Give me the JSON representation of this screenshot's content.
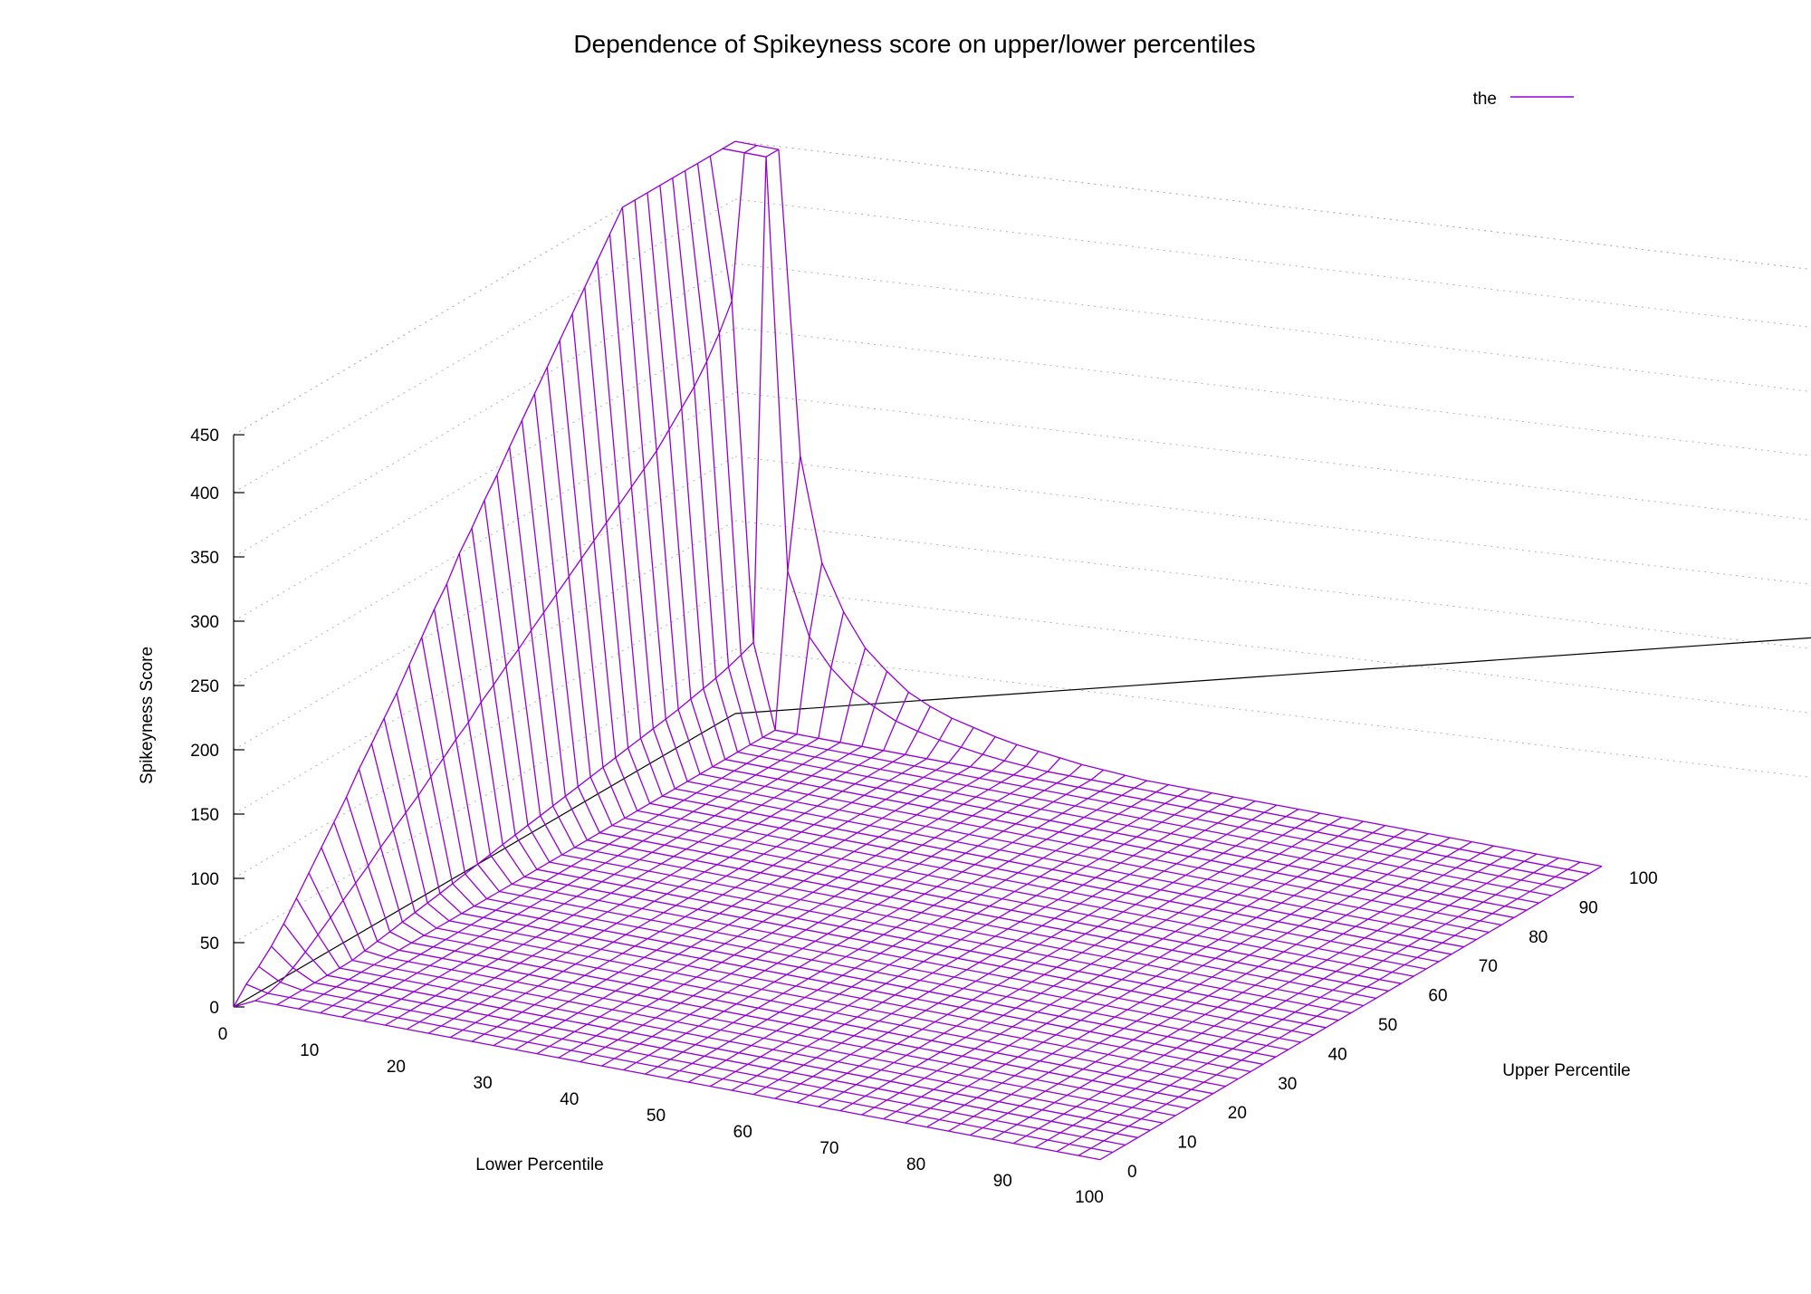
{
  "chart_data": {
    "type": "surface",
    "title": "Dependence of Spikeyness score on upper/lower percentiles",
    "xlabel": "Lower Percentile",
    "ylabel": "Upper Percentile",
    "zlabel": "Spikeyness Score",
    "xlim": [
      0,
      100
    ],
    "ylim": [
      0,
      100
    ],
    "zlim": [
      0,
      450
    ],
    "x_ticks": [
      0,
      10,
      20,
      30,
      40,
      50,
      60,
      70,
      80,
      90,
      100
    ],
    "y_ticks": [
      0,
      10,
      20,
      30,
      40,
      50,
      60,
      70,
      80,
      90,
      100
    ],
    "z_ticks": [
      0,
      50,
      100,
      150,
      200,
      250,
      300,
      350,
      400,
      450
    ],
    "grid": "dotted back planes",
    "legend_position": "top-right",
    "series": [
      {
        "name": "the",
        "color": "#9400d3",
        "grid_lower": [
          0,
          2.5,
          5,
          7.5,
          10,
          12.5,
          15,
          17.5,
          20,
          22.5,
          25,
          27.5,
          30,
          32.5,
          35,
          37.5,
          40,
          42.5,
          45,
          47.5,
          50,
          52.5,
          55,
          57.5,
          60,
          62.5,
          65,
          67.5,
          70,
          72.5,
          75,
          77.5,
          80,
          82.5,
          85,
          87.5,
          90,
          92.5,
          95,
          97.5,
          100
        ],
        "grid_upper": [
          0,
          2.5,
          5,
          7.5,
          10,
          12.5,
          15,
          17.5,
          20,
          22.5,
          25,
          27.5,
          30,
          32.5,
          35,
          37.5,
          40,
          42.5,
          45,
          47.5,
          50,
          52.5,
          55,
          57.5,
          60,
          62.5,
          65,
          67.5,
          70,
          72.5,
          75,
          77.5,
          80,
          82.5,
          85,
          87.5,
          90,
          92.5,
          95,
          97.5,
          100
        ],
        "ridge_along_upper_at_lower_0": [
          0,
          12,
          20,
          30,
          42,
          56,
          70,
          84,
          98,
          112,
          128,
          142,
          156,
          170,
          186,
          202,
          218,
          232,
          250,
          264,
          280,
          294,
          310,
          325,
          340,
          355,
          370,
          385,
          400,
          415,
          430,
          445,
          460,
          480,
          500,
          520,
          545,
          575,
          610,
          1000,
          1000
        ],
        "ridge_along_lower_at_upper_100": [
          1000,
          1000,
          1000,
          210,
          130,
          95,
          70,
          55,
          42,
          34,
          28,
          24,
          20,
          17,
          15,
          13,
          11,
          10,
          9,
          8,
          7,
          6,
          5.5,
          5,
          4.5,
          4,
          3.5,
          3,
          3,
          2.5,
          2.5,
          2,
          2,
          1.5,
          1.5,
          1,
          1,
          1,
          0.5,
          0.5,
          0
        ],
        "base_level": 8,
        "decay_from_walls": 2.5
      }
    ]
  }
}
